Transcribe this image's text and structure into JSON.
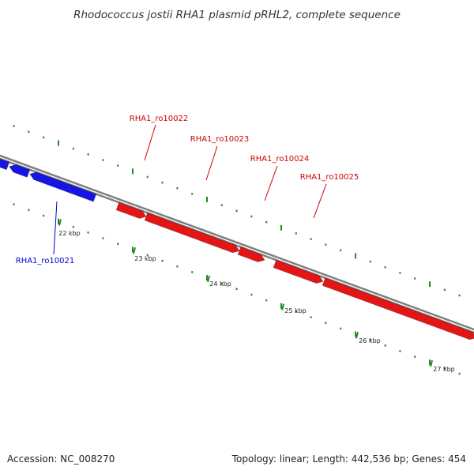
{
  "title": "Rhodococcus jostii RHA1 plasmid pRHL2, complete sequence",
  "footer": {
    "accession": "Accession: NC_008270",
    "summary": "Topology: linear; Length: 442,536 bp; Genes: 454"
  },
  "ticks": [
    "22 kbp",
    "23 kbp",
    "24 kbp",
    "25 kbp",
    "26 kbp",
    "27 kbp"
  ],
  "genes": [
    {
      "label": "RHA1_ro10021",
      "strand": "reverse",
      "color": "#1515e6"
    },
    {
      "label": "RHA1_ro10022",
      "strand": "forward",
      "color": "#e61515"
    },
    {
      "label": "RHA1_ro10023",
      "strand": "forward",
      "color": "#e61515"
    },
    {
      "label": "RHA1_ro10024",
      "strand": "forward",
      "color": "#e61515"
    },
    {
      "label": "RHA1_ro10025",
      "strand": "forward",
      "color": "#e61515"
    }
  ],
  "colors": {
    "backbone": "#808080",
    "tick": "#1f8a1f",
    "forward_gene": "#e61515",
    "reverse_gene": "#1515e6",
    "forward_label": "#cc0000",
    "reverse_label": "#0000cc"
  }
}
